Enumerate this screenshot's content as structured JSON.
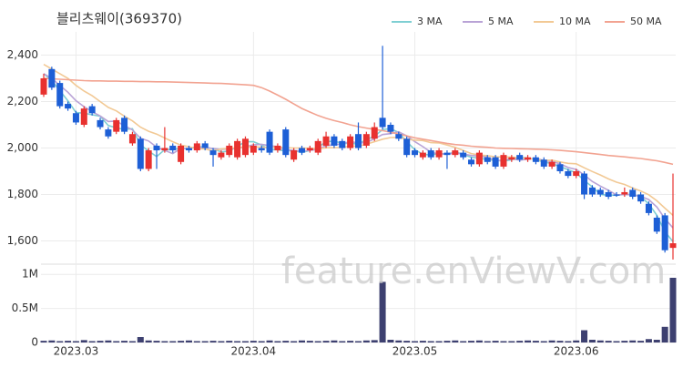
{
  "chart_data": {
    "type": "candlestick",
    "title": "블리츠웨이(369370)",
    "watermark": "feature.enViewV.com",
    "categories": [
      null,
      null,
      null,
      null,
      "2023.03",
      null,
      null,
      null,
      null,
      null,
      null,
      null,
      null,
      null,
      null,
      null,
      null,
      null,
      null,
      null,
      null,
      null,
      null,
      null,
      null,
      null,
      "2023.04",
      null,
      null,
      null,
      null,
      null,
      null,
      null,
      null,
      null,
      null,
      null,
      null,
      null,
      null,
      null,
      null,
      null,
      null,
      null,
      "2023.05",
      null,
      null,
      null,
      null,
      null,
      null,
      null,
      null,
      null,
      null,
      null,
      null,
      null,
      null,
      null,
      null,
      null,
      null,
      null,
      "2023.06",
      null,
      null,
      null,
      null,
      null,
      null,
      null,
      null,
      null,
      null,
      null,
      null
    ],
    "open": [
      2230,
      2340,
      2280,
      2190,
      2150,
      2100,
      2180,
      2120,
      2080,
      2070,
      2130,
      2020,
      2040,
      1910,
      2010,
      1990,
      2010,
      1940,
      2000,
      1990,
      2020,
      1990,
      1960,
      1970,
      1960,
      1970,
      1980,
      2000,
      2070,
      1990,
      2080,
      1950,
      2000,
      1990,
      1980,
      2010,
      2050,
      2030,
      2000,
      2060,
      2010,
      2040,
      2130,
      2100,
      2060,
      2040,
      1990,
      1960,
      1990,
      1960,
      1980,
      1970,
      1980,
      1950,
      1930,
      1960,
      1960,
      1920,
      1950,
      1970,
      1950,
      1960,
      1950,
      1920,
      1930,
      1900,
      1880,
      1890,
      1830,
      1820,
      1810,
      1800,
      1800,
      1820,
      1800,
      1760,
      1700,
      1710,
      1570
    ],
    "high": [
      2320,
      2350,
      2290,
      2200,
      2160,
      2180,
      2190,
      2130,
      2090,
      2130,
      2140,
      2070,
      2050,
      2000,
      2020,
      2090,
      2020,
      2020,
      2010,
      2030,
      2030,
      2000,
      1990,
      2020,
      2040,
      2050,
      2020,
      2010,
      2080,
      2020,
      2090,
      2000,
      2010,
      2010,
      2040,
      2070,
      2060,
      2040,
      2060,
      2110,
      2070,
      2110,
      2440,
      2110,
      2070,
      2050,
      2000,
      1990,
      2000,
      2000,
      1990,
      2000,
      1990,
      1960,
      1990,
      1970,
      1970,
      1980,
      1970,
      1980,
      1970,
      1970,
      1960,
      1950,
      1940,
      1910,
      1910,
      1900,
      1840,
      1830,
      1820,
      1810,
      1830,
      1830,
      1810,
      1770,
      1710,
      1720,
      1890
    ],
    "low": [
      2220,
      2250,
      2170,
      2160,
      2100,
      2090,
      2140,
      2080,
      2040,
      2060,
      2060,
      2010,
      1900,
      1900,
      1910,
      1980,
      1980,
      1930,
      1980,
      1980,
      1990,
      1920,
      1950,
      1960,
      1950,
      1960,
      1970,
      1980,
      1970,
      1980,
      1960,
      1940,
      1970,
      1980,
      1970,
      2000,
      2000,
      1990,
      1990,
      1990,
      2000,
      2030,
      2080,
      2060,
      2030,
      1960,
      1960,
      1950,
      1950,
      1950,
      1910,
      1960,
      1950,
      1920,
      1920,
      1930,
      1910,
      1910,
      1940,
      1940,
      1940,
      1930,
      1910,
      1910,
      1890,
      1870,
      1870,
      1780,
      1790,
      1790,
      1780,
      1790,
      1790,
      1780,
      1760,
      1710,
      1630,
      1550,
      1520
    ],
    "close": [
      2300,
      2260,
      2180,
      2170,
      2110,
      2170,
      2150,
      2090,
      2050,
      2120,
      2070,
      2060,
      1910,
      1990,
      1990,
      2000,
      1990,
      2010,
      1990,
      2020,
      2000,
      1970,
      1980,
      2010,
      2030,
      2040,
      2010,
      1990,
      1980,
      2010,
      1970,
      1990,
      1980,
      2000,
      2030,
      2050,
      2010,
      2000,
      2050,
      2000,
      2060,
      2090,
      2090,
      2070,
      2040,
      1970,
      1970,
      1980,
      1960,
      1990,
      1970,
      1990,
      1960,
      1930,
      1980,
      1940,
      1920,
      1970,
      1960,
      1950,
      1960,
      1940,
      1920,
      1940,
      1900,
      1880,
      1900,
      1800,
      1800,
      1800,
      1790,
      1795,
      1810,
      1790,
      1770,
      1720,
      1640,
      1560,
      1590
    ],
    "up_color": "#e8312f",
    "down_color": "#1d5fd6",
    "series": [
      {
        "name": "3 MA",
        "color": "#7fcfd3",
        "values": [
          2320,
          2290,
          2247,
          2203,
          2153,
          2150,
          2143,
          2137,
          2097,
          2087,
          2080,
          2083,
          2013,
          1987,
          1963,
          1993,
          1993,
          2000,
          1997,
          2007,
          2003,
          1997,
          1983,
          1987,
          2007,
          2027,
          2027,
          2013,
          1993,
          1993,
          1987,
          1990,
          1980,
          1990,
          2003,
          2027,
          2030,
          2020,
          2020,
          2017,
          2037,
          2050,
          2080,
          2083,
          2067,
          2027,
          1993,
          1973,
          1970,
          1977,
          1973,
          1983,
          1973,
          1960,
          1957,
          1950,
          1947,
          1943,
          1950,
          1960,
          1957,
          1950,
          1940,
          1933,
          1920,
          1907,
          1893,
          1860,
          1833,
          1800,
          1797,
          1797,
          1800,
          1800,
          1790,
          1760,
          1710,
          1640,
          1597
        ]
      },
      {
        "name": "5 MA",
        "color": "#b9a3d6",
        "values": [
          2320,
          2300,
          2270,
          2240,
          2204,
          2178,
          2156,
          2138,
          2114,
          2116,
          2096,
          2078,
          2042,
          2030,
          2004,
          1990,
          1976,
          1998,
          1998,
          2002,
          2002,
          1998,
          1994,
          1996,
          1998,
          2006,
          2014,
          2016,
          2010,
          2006,
          1992,
          1990,
          1986,
          1990,
          1994,
          2010,
          2014,
          2018,
          2028,
          2022,
          2024,
          2040,
          2058,
          2062,
          2070,
          2052,
          2028,
          2006,
          1982,
          1974,
          1974,
          1978,
          1974,
          1968,
          1966,
          1960,
          1946,
          1948,
          1954,
          1948,
          1952,
          1956,
          1946,
          1942,
          1932,
          1916,
          1908,
          1884,
          1856,
          1836,
          1818,
          1798,
          1800,
          1798,
          1792,
          1778,
          1746,
          1696,
          1656
        ]
      },
      {
        "name": "10 MA",
        "color": "#f2c995",
        "values": [
          2360,
          2340,
          2320,
          2300,
          2270,
          2245,
          2225,
          2200,
          2175,
          2160,
          2137,
          2117,
          2090,
          2072,
          2060,
          2043,
          2027,
          2012,
          2006,
          1996,
          1996,
          1987,
          1996,
          1998,
          2002,
          2005,
          2006,
          2004,
          2003,
          2004,
          2001,
          2000,
          2000,
          1999,
          1996,
          2001,
          2001,
          2002,
          2009,
          2008,
          2017,
          2027,
          2038,
          2045,
          2046,
          2038,
          2034,
          2032,
          2023,
          2022,
          2013,
          2003,
          1990,
          1976,
          1970,
          1967,
          1962,
          1961,
          1961,
          1957,
          1956,
          1951,
          1947,
          1948,
          1940,
          1934,
          1932,
          1915,
          1899,
          1884,
          1867,
          1853,
          1843,
          1828,
          1815,
          1799,
          1773,
          1741,
          1710
        ]
      },
      {
        "name": "50 MA",
        "color": "#f2a391",
        "values": [
          2300,
          2298,
          2296,
          2294,
          2292,
          2290,
          2289,
          2289,
          2288,
          2288,
          2287,
          2287,
          2286,
          2286,
          2285,
          2285,
          2284,
          2283,
          2282,
          2281,
          2280,
          2279,
          2278,
          2276,
          2274,
          2272,
          2270,
          2260,
          2245,
          2228,
          2210,
          2190,
          2170,
          2155,
          2140,
          2128,
          2118,
          2110,
          2100,
          2092,
          2086,
          2080,
          2075,
          2068,
          2060,
          2052,
          2044,
          2038,
          2032,
          2026,
          2020,
          2015,
          2012,
          2008,
          2005,
          2003,
          2000,
          1999,
          1998,
          1997,
          1996,
          1995,
          1994,
          1992,
          1990,
          1987,
          1984,
          1980,
          1976,
          1972,
          1968,
          1965,
          1962,
          1958,
          1955,
          1950,
          1945,
          1938,
          1930
        ]
      }
    ],
    "ylim": [
      1500,
      2500
    ],
    "yticks": [
      {
        "value": 1600,
        "label": "1,600"
      },
      {
        "value": 1800,
        "label": "1,800"
      },
      {
        "value": 2000,
        "label": "2,000"
      },
      {
        "value": 2200,
        "label": "2,200"
      },
      {
        "value": 2400,
        "label": "2,400"
      }
    ],
    "volume": {
      "color": "#3d4070",
      "ylim": [
        0,
        1150000
      ],
      "yticks": [
        0,
        {
          "value": 500000,
          "label": "0.5M"
        },
        {
          "value": 1000000,
          "label": "1M"
        }
      ],
      "values": [
        25000,
        30000,
        20000,
        25000,
        20000,
        35000,
        20000,
        25000,
        30000,
        20000,
        25000,
        20000,
        80000,
        30000,
        25000,
        20000,
        20000,
        25000,
        30000,
        20000,
        20000,
        25000,
        20000,
        25000,
        20000,
        20000,
        25000,
        20000,
        30000,
        20000,
        25000,
        20000,
        30000,
        25000,
        20000,
        25000,
        30000,
        20000,
        25000,
        20000,
        30000,
        35000,
        890000,
        40000,
        30000,
        25000,
        20000,
        25000,
        20000,
        20000,
        25000,
        30000,
        20000,
        25000,
        30000,
        20000,
        25000,
        20000,
        20000,
        25000,
        30000,
        25000,
        20000,
        30000,
        25000,
        20000,
        30000,
        180000,
        40000,
        30000,
        25000,
        20000,
        25000,
        30000,
        25000,
        50000,
        40000,
        230000,
        950000
      ]
    },
    "grid": true
  }
}
